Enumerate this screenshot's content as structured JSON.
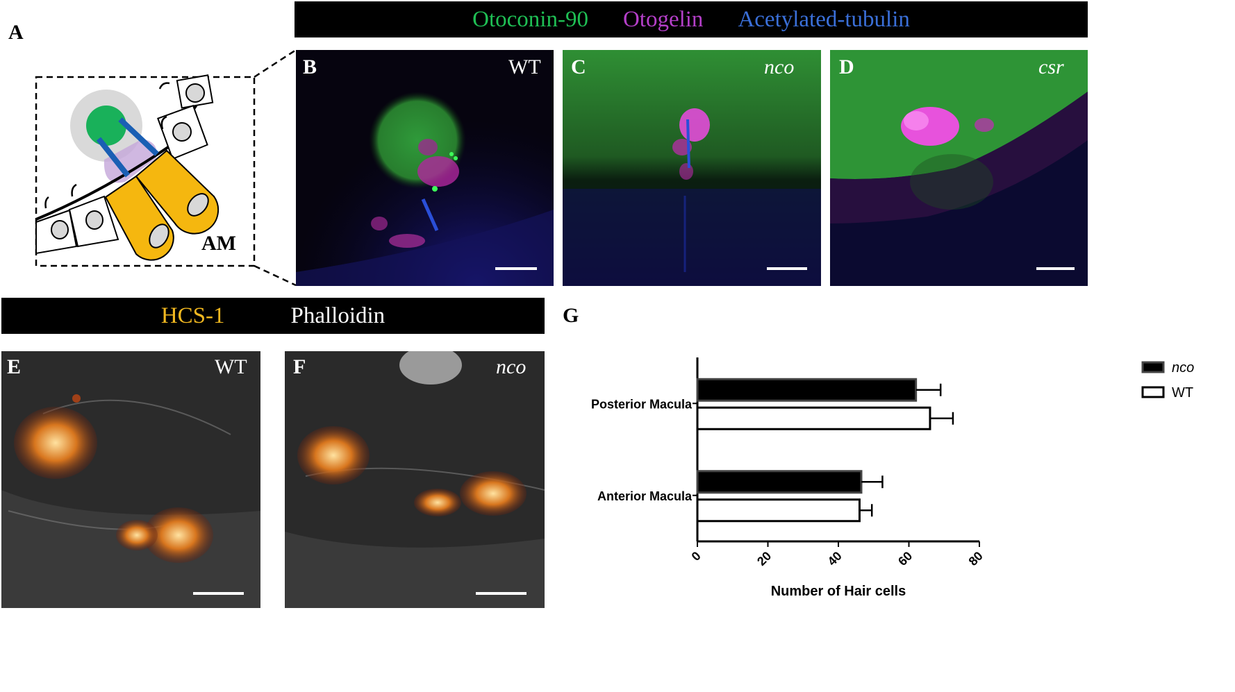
{
  "panel_a": {
    "label": "A",
    "region_label": "AM"
  },
  "top_header": {
    "stain1": "Otoconin-90",
    "stain1_color": "#1fbf54",
    "stain2": "Otogelin",
    "stain2_color": "#b43fc8",
    "stain3": "Acetylated-tubulin",
    "stain3_color": "#3a6fd8"
  },
  "panel_b": {
    "label": "B",
    "genotype": "WT"
  },
  "panel_c": {
    "label": "C",
    "genotype": "nco"
  },
  "panel_d": {
    "label": "D",
    "genotype": "csr"
  },
  "bottom_header": {
    "stain1": "HCS-1",
    "stain1_color": "#f2b820",
    "stain2": "Phalloidin",
    "stain2_color": "#ffffff"
  },
  "panel_e": {
    "label": "E",
    "genotype": "WT"
  },
  "panel_f": {
    "label": "F",
    "genotype": "nco"
  },
  "panel_g": {
    "label": "G"
  },
  "chart_data": {
    "type": "bar",
    "orientation": "horizontal",
    "categories": [
      "Posterior Macula",
      "Anterior Macula"
    ],
    "series": [
      {
        "name": "nco",
        "fill": "#000000",
        "values": [
          62,
          46.5
        ],
        "errors": [
          7,
          6
        ]
      },
      {
        "name": "WT",
        "fill": "#ffffff",
        "values": [
          66,
          46
        ],
        "errors": [
          6.5,
          3.5
        ]
      }
    ],
    "xlabel": "Number of Hair cells",
    "xlim": [
      0,
      80
    ],
    "xticks": [
      0,
      20,
      40,
      60,
      80
    ],
    "legend_position": "top-right",
    "grid": false
  }
}
